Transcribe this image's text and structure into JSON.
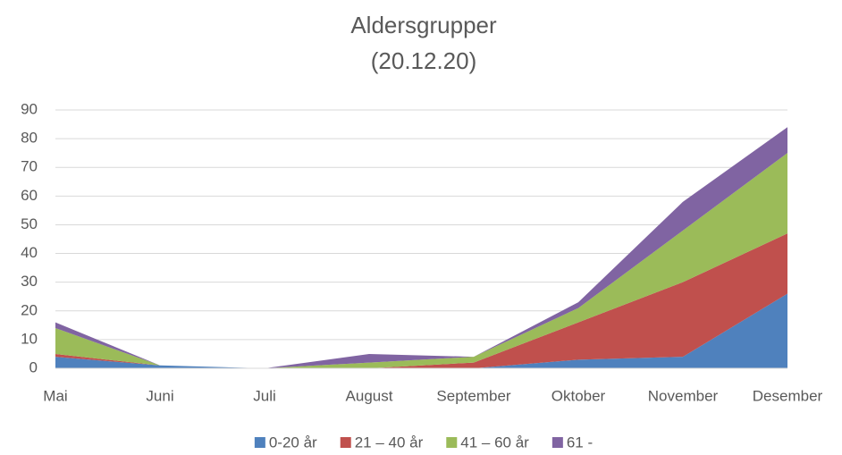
{
  "chart_data": {
    "type": "stacked_area",
    "title": "Aldersgrupper",
    "subtitle": "(20.12.20)",
    "categories": [
      "Mai",
      "Juni",
      "Juli",
      "August",
      "September",
      "Oktober",
      "November",
      "Desember"
    ],
    "series": [
      {
        "name": "0-20 år",
        "color": "#4f81bd",
        "values": [
          4,
          1,
          0,
          0,
          0,
          3,
          4,
          26
        ]
      },
      {
        "name": "21 – 40 år",
        "color": "#c0504d",
        "values": [
          1,
          0,
          0,
          0,
          2,
          13,
          26,
          21
        ]
      },
      {
        "name": "41 – 60 år",
        "color": "#9bbb59",
        "values": [
          9,
          0,
          0,
          2,
          2,
          5,
          18,
          28
        ]
      },
      {
        "name": "61 -",
        "color": "#8064a2",
        "values": [
          2,
          0,
          0,
          3,
          0,
          2,
          10,
          9
        ]
      }
    ],
    "ylim": [
      0,
      90
    ],
    "yticks": [
      0,
      10,
      20,
      30,
      40,
      50,
      60,
      70,
      80,
      90
    ],
    "grid": true,
    "legend": "bottom"
  }
}
